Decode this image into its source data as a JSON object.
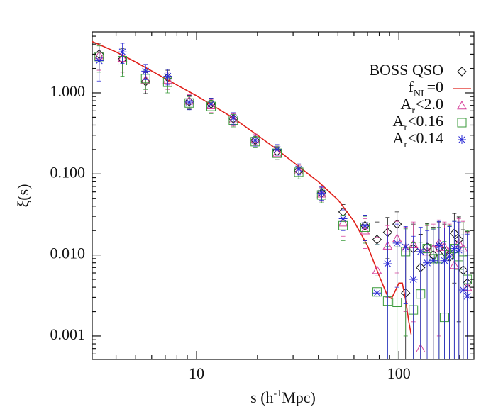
{
  "chart_data": {
    "type": "scatter",
    "y_label": "ξ(s)",
    "x_label": [
      "s (h",
      "-1",
      "Mpc)"
    ],
    "xlog": true,
    "ylog": true,
    "xlim": [
      3.05,
      235
    ],
    "ylim": [
      0.000514,
      5.65
    ],
    "xticks": [
      10,
      100
    ],
    "yticks": [
      {
        "value": 0.001,
        "label": "0.001"
      },
      {
        "value": 0.01,
        "label": "0.010"
      },
      {
        "value": 0.1,
        "label": "0.100"
      },
      {
        "value": 1,
        "label": "1.000"
      }
    ],
    "xticks_minor": [
      4,
      5,
      6,
      7,
      8,
      9,
      20,
      30,
      40,
      50,
      60,
      70,
      80,
      90,
      200
    ],
    "yticks_minor": [
      0.0006,
      0.0007,
      0.0008,
      0.0009,
      0.002,
      0.003,
      0.004,
      0.005,
      0.006,
      0.007,
      0.008,
      0.009,
      0.02,
      0.03,
      0.04,
      0.05,
      0.06,
      0.07,
      0.08,
      0.09,
      0.2,
      0.3,
      0.4,
      0.5,
      0.6,
      0.7,
      0.8,
      0.9,
      2,
      3,
      4,
      5
    ],
    "x": [
      3.3,
      4.3,
      5.6,
      7.2,
      9.2,
      11.8,
      15.2,
      19.5,
      25,
      32,
      41.5,
      53,
      68,
      78,
      88,
      98,
      108,
      118,
      128,
      138,
      148,
      158,
      168,
      178,
      188,
      198,
      208,
      218
    ],
    "series": [
      {
        "name": [
          "BOSS QSO"
        ],
        "marker": "diamond",
        "color": "#111111",
        "values": [
          3.0,
          2.6,
          1.38,
          1.55,
          0.78,
          0.73,
          0.48,
          0.26,
          0.19,
          0.11,
          0.058,
          0.034,
          0.023,
          0.0155,
          0.019,
          0.024,
          0.0034,
          0.012,
          0.007,
          0.0125,
          0.01,
          0.0125,
          0.011,
          0.0095,
          0.0185,
          0.0155,
          0.0065,
          0.0045
        ],
        "errors": [
          1.1,
          0.9,
          0.4,
          0.35,
          0.15,
          0.13,
          0.08,
          0.04,
          0.03,
          0.018,
          0.011,
          0.008,
          0.008,
          0.01,
          0.01,
          0.01,
          0.01,
          0.012,
          0.011,
          0.012,
          0.012,
          0.013,
          0.013,
          0.013,
          0.014,
          0.014,
          0.014,
          0.015
        ]
      },
      {
        "name": [
          "f",
          "NL",
          "=0"
        ],
        "type": "line",
        "color": "#e0201a",
        "x": [
          3.05,
          4,
          5,
          7,
          10,
          15,
          20,
          25,
          30,
          40,
          50,
          60,
          70,
          80,
          88,
          92,
          96,
          100,
          104,
          108,
          112,
          115
        ],
        "values": [
          4.3,
          3.2,
          2.4,
          1.5,
          0.92,
          0.5,
          0.3,
          0.2,
          0.14,
          0.08,
          0.048,
          0.026,
          0.013,
          0.0055,
          0.0031,
          0.0029,
          0.0036,
          0.0045,
          0.0045,
          0.0028,
          0.0015,
          0.00105
        ]
      },
      {
        "name": [
          "A",
          "r",
          "<2.0"
        ],
        "marker": "triangle",
        "color": "#d6409a",
        "values": [
          2.9,
          2.7,
          1.45,
          1.45,
          0.8,
          0.7,
          0.47,
          0.27,
          0.18,
          0.11,
          0.057,
          0.025,
          0.02,
          0.0065,
          0.013,
          0.016,
          0.012,
          0.0135,
          0.0007,
          0.011,
          0.012,
          0.014,
          0.0125,
          0.011,
          0.0075,
          0.014,
          0.012,
          0.004
        ],
        "errors": [
          1.0,
          0.9,
          0.4,
          0.35,
          0.15,
          0.13,
          0.08,
          0.04,
          0.03,
          0.018,
          0.011,
          0.008,
          0.008,
          0.01,
          0.01,
          0.01,
          0.01,
          0.012,
          0.011,
          0.012,
          0.012,
          0.013,
          0.013,
          0.013,
          0.014,
          0.014,
          0.014,
          0.015
        ]
      },
      {
        "name": [
          "A",
          "r",
          "<0.16"
        ],
        "marker": "square",
        "color": "#3a9a3a",
        "values": [
          2.8,
          2.5,
          1.5,
          1.35,
          0.75,
          0.68,
          0.46,
          0.25,
          0.18,
          0.105,
          0.055,
          0.023,
          0.022,
          0.0035,
          0.0027,
          0.0026,
          0.011,
          0.0021,
          0.0033,
          0.012,
          0.009,
          0.009,
          0.0017,
          0.01,
          0.012,
          0.0075,
          0.011,
          0.005
        ],
        "errors": [
          1.0,
          0.9,
          0.4,
          0.35,
          0.15,
          0.13,
          0.08,
          0.04,
          0.03,
          0.018,
          0.011,
          0.008,
          0.008,
          0.01,
          0.01,
          0.01,
          0.01,
          0.012,
          0.011,
          0.012,
          0.012,
          0.013,
          0.013,
          0.013,
          0.014,
          0.014,
          0.014,
          0.015
        ]
      },
      {
        "name": [
          "A",
          "r",
          "<0.14"
        ],
        "marker": "asterisk",
        "color": "#2a2ad4",
        "values": [
          2.5,
          3.2,
          1.85,
          1.6,
          0.77,
          0.73,
          0.49,
          0.26,
          0.2,
          0.115,
          0.058,
          0.028,
          0.023,
          0.0034,
          0.0078,
          0.014,
          0.0125,
          0.005,
          0.011,
          0.008,
          0.0085,
          0.013,
          0.0085,
          0.0095,
          0.012,
          0.0115,
          0.0037,
          0.0031
        ],
        "errors": [
          1.1,
          0.9,
          0.4,
          0.35,
          0.15,
          0.13,
          0.08,
          0.04,
          0.03,
          0.018,
          0.011,
          0.008,
          0.008,
          0.01,
          0.01,
          0.01,
          0.01,
          0.012,
          0.011,
          0.012,
          0.012,
          0.013,
          0.013,
          0.013,
          0.014,
          0.014,
          0.014,
          0.015
        ]
      }
    ]
  }
}
